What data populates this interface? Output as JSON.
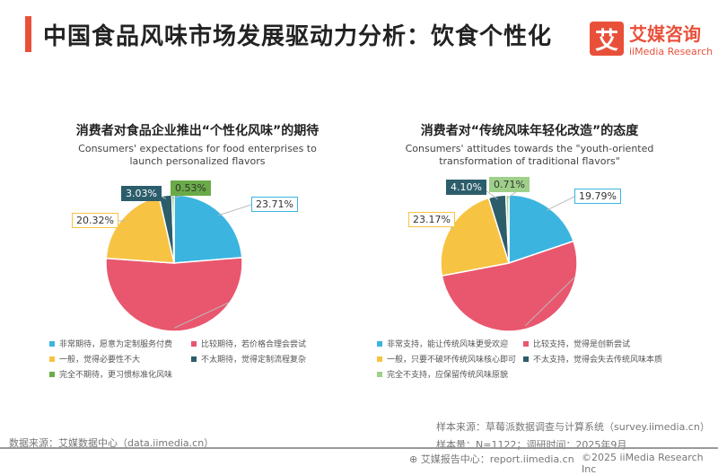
{
  "header": {
    "title": "中国食品风味市场发展驱动力分析：饮食个性化",
    "logo_glyph": "艾",
    "logo_cn": "艾媒咨询",
    "logo_en": "iiMedia Research"
  },
  "chart_data": [
    {
      "type": "pie",
      "title": "消费者对食品企业推出“个性化风味”的期待",
      "subtitle": "Consumers' expectations for food enterprises to launch personalized flavors",
      "series": [
        {
          "name": "非常期待，愿意为定制服务付费",
          "value": 23.71,
          "label": "23.71%",
          "color": "#3bb4e0"
        },
        {
          "name": "比较期待，若价格合理会尝试",
          "value": 52.41,
          "label": "52.41%",
          "color": "#e8576e"
        },
        {
          "name": "一般，觉得必要性不大",
          "value": 20.32,
          "label": "20.32%",
          "color": "#f7c343"
        },
        {
          "name": "不太期待，觉得定制流程复杂",
          "value": 3.03,
          "label": "3.03%",
          "color": "#2c5d6b"
        },
        {
          "name": "完全不期待，更习惯标准化风味",
          "value": 0.53,
          "label": "0.53%",
          "color": "#6aab47"
        }
      ]
    },
    {
      "type": "pie",
      "title": "消费者对“传统风味年轻化改造”的态度",
      "subtitle": "Consumers' attitudes towards the \"youth-oriented transformation of traditional flavors\"",
      "series": [
        {
          "name": "非常支持，能让传统风味更受欢迎",
          "value": 19.79,
          "label": "19.79%",
          "color": "#3bb4e0"
        },
        {
          "name": "比较支持，觉得是创新尝试",
          "value": 52.23,
          "label": "52.23%",
          "color": "#e8576e"
        },
        {
          "name": "一般，只要不破坏传统风味核心即可",
          "value": 23.17,
          "label": "23.17%",
          "color": "#f7c343"
        },
        {
          "name": "不太支持，觉得会失去传统风味本质",
          "value": 4.1,
          "label": "4.10%",
          "color": "#2c5d6b"
        },
        {
          "name": "完全不支持，应保留传统风味原貌",
          "value": 0.71,
          "label": "0.71%",
          "color": "#9fd08a"
        }
      ]
    }
  ],
  "footer": {
    "source_left": "数据来源：艾媒数据中心（data.iimedia.cn）",
    "sample_source": "样本来源：草莓派数据调查与计算系统（survey.iimedia.cn）",
    "sample_size": "样本量：N=1122；调研时间：2025年9月",
    "report": "艾媒报告中心：report.iimedia.cn",
    "copyright": "©2025  iiMedia Research  Inc"
  }
}
